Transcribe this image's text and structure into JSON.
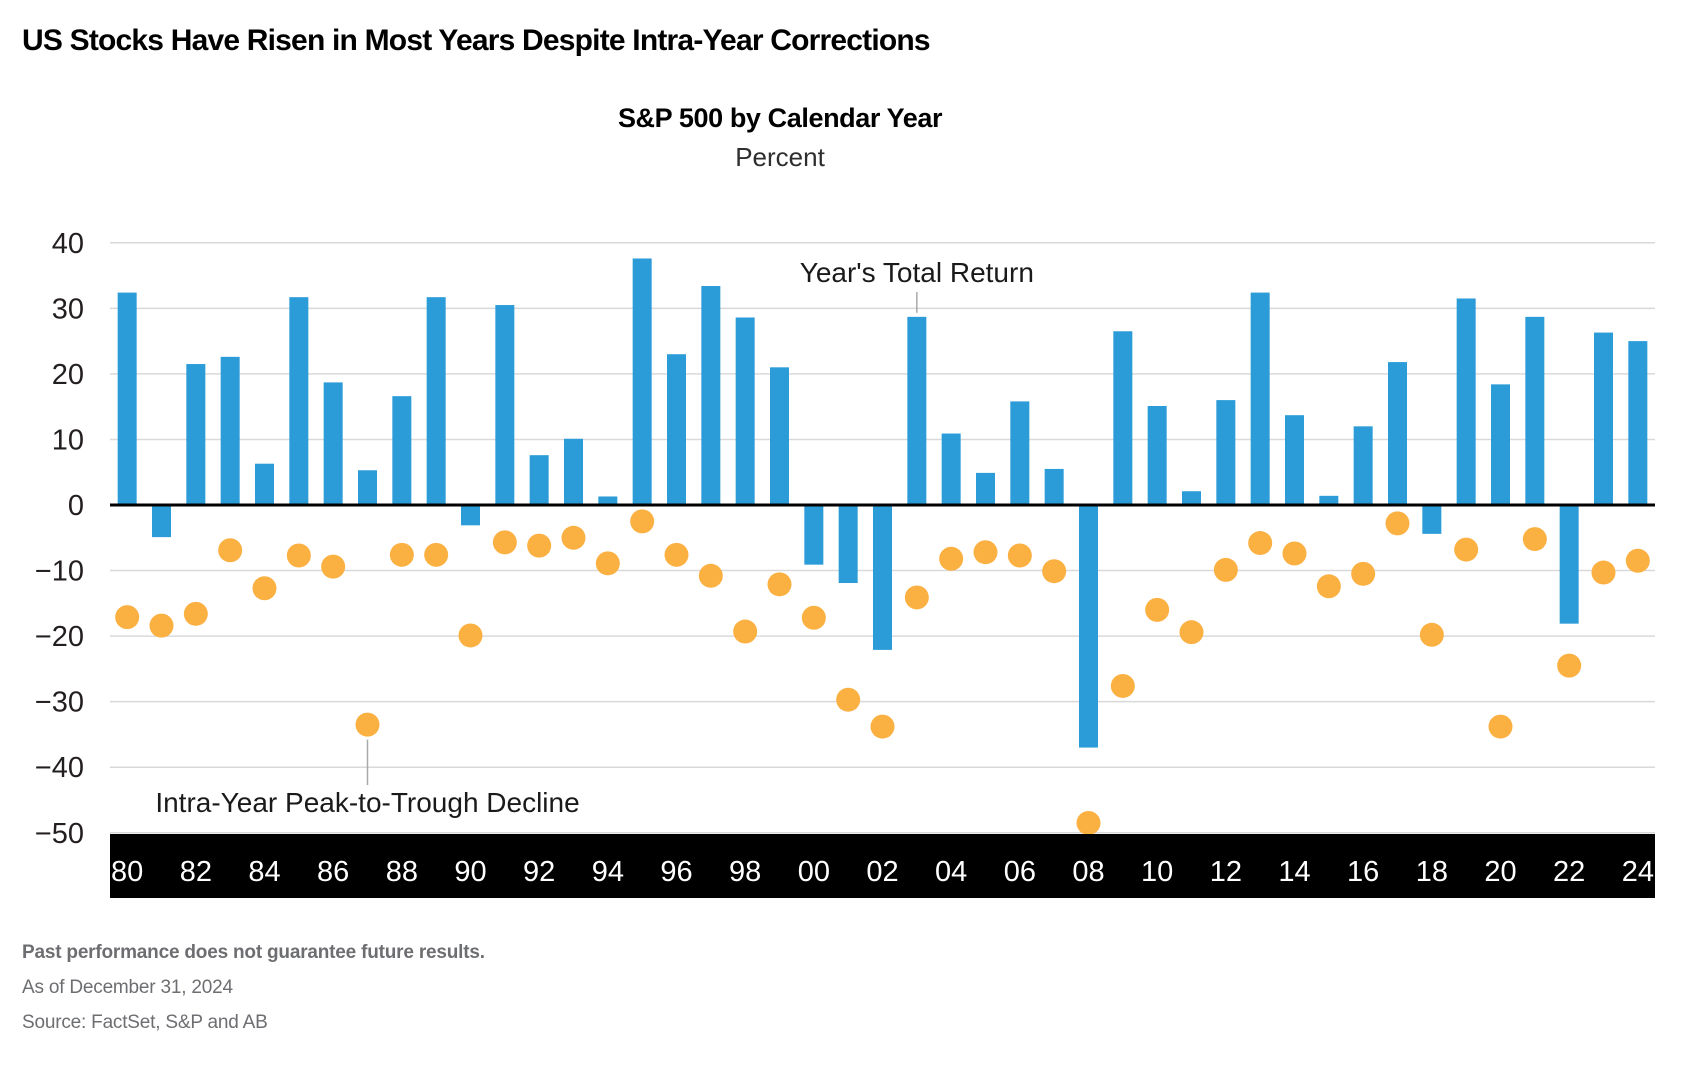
{
  "page": {
    "title": "US Stocks Have Risen in Most Years Despite Intra-Year Corrections",
    "footnotes": {
      "disclaimer": "Past performance does not guarantee future results.",
      "as_of": "As of December 31, 2024",
      "source": "Source: FactSet, S&P and AB"
    }
  },
  "chart_data": {
    "type": "bar",
    "title": "S&P 500 by Calendar Year",
    "subtitle": "Percent",
    "categories": [
      1980,
      1981,
      1982,
      1983,
      1984,
      1985,
      1986,
      1987,
      1988,
      1989,
      1990,
      1991,
      1992,
      1993,
      1994,
      1995,
      1996,
      1997,
      1998,
      1999,
      2000,
      2001,
      2002,
      2003,
      2004,
      2005,
      2006,
      2007,
      2008,
      2009,
      2010,
      2011,
      2012,
      2013,
      2014,
      2015,
      2016,
      2017,
      2018,
      2019,
      2020,
      2021,
      2022,
      2023,
      2024
    ],
    "x_tick_labels": [
      "80",
      "82",
      "84",
      "86",
      "88",
      "90",
      "92",
      "94",
      "96",
      "98",
      "00",
      "02",
      "04",
      "06",
      "08",
      "10",
      "12",
      "14",
      "16",
      "18",
      "20",
      "22",
      "24"
    ],
    "series": [
      {
        "name": "Year's Total Return",
        "type": "bar",
        "color": "#2b9cd8",
        "values": [
          32.4,
          -4.9,
          21.5,
          22.6,
          6.3,
          31.7,
          18.7,
          5.3,
          16.6,
          31.7,
          -3.1,
          30.5,
          7.6,
          10.1,
          1.3,
          37.6,
          23.0,
          33.4,
          28.6,
          21.0,
          -9.1,
          -11.9,
          -22.1,
          28.7,
          10.9,
          4.9,
          15.8,
          5.5,
          -37.0,
          26.5,
          15.1,
          2.1,
          16.0,
          32.4,
          13.7,
          1.4,
          12.0,
          21.8,
          -4.4,
          31.5,
          18.4,
          28.7,
          -18.1,
          26.3,
          25.0
        ]
      },
      {
        "name": "Intra-Year Peak-to-Trough Decline",
        "type": "scatter",
        "color": "#fbb042",
        "values": [
          -17.1,
          -18.4,
          -16.6,
          -6.9,
          -12.7,
          -7.7,
          -9.4,
          -33.5,
          -7.6,
          -7.6,
          -19.9,
          -5.7,
          -6.2,
          -5.0,
          -8.9,
          -2.5,
          -7.6,
          -10.8,
          -19.3,
          -12.1,
          -17.2,
          -29.7,
          -33.8,
          -14.1,
          -8.2,
          -7.2,
          -7.7,
          -10.1,
          -48.5,
          -27.6,
          -16.0,
          -19.4,
          -9.9,
          -5.8,
          -7.4,
          -12.4,
          -10.5,
          -2.8,
          -19.8,
          -6.8,
          -33.8,
          -5.2,
          -24.5,
          -10.3,
          -8.5
        ]
      }
    ],
    "ylim": [
      -50,
      40
    ],
    "y_ticks": [
      40,
      30,
      20,
      10,
      0,
      -10,
      -20,
      -30,
      -40,
      -50
    ],
    "grid": true,
    "legend_position": "annotations-inline",
    "annotations": [
      {
        "text": "Year's Total Return",
        "target_year": 2003,
        "placement": "above"
      },
      {
        "text": "Intra-Year Peak-to-Trough Decline",
        "target_year": 1987,
        "placement": "below"
      }
    ],
    "colors": {
      "bar": "#2b9cd8",
      "dot": "#fbb042",
      "gridline": "#d9d9d9",
      "zero_line": "#000000",
      "axis_band": "#000000",
      "axis_band_text": "#ffffff",
      "axis_text": "#231f20",
      "annotation_text": "#1a1a1a",
      "leader_line": "#a7a9ac"
    }
  }
}
